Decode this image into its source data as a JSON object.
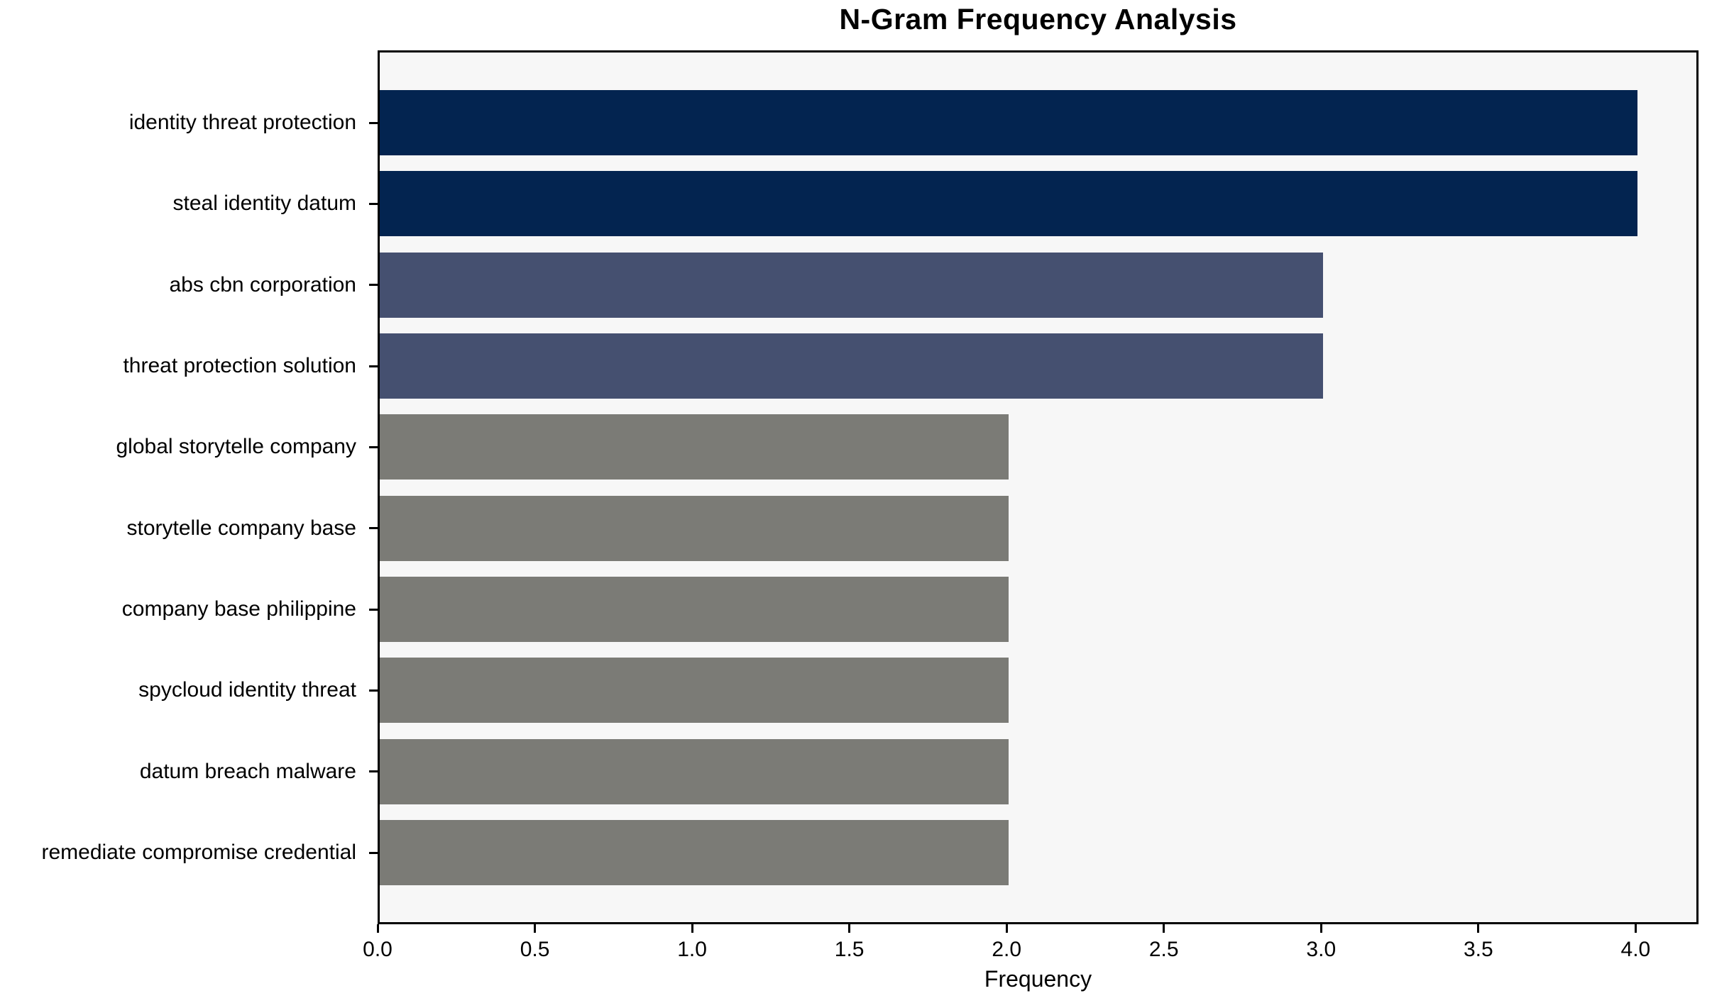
{
  "chart_data": {
    "type": "bar",
    "orientation": "horizontal",
    "title": "N-Gram Frequency Analysis",
    "xlabel": "Frequency",
    "ylabel": "",
    "categories": [
      "identity threat protection",
      "steal identity datum",
      "abs cbn corporation",
      "threat protection solution",
      "global storytelle company",
      "storytelle company base",
      "company base philippine",
      "spycloud identity threat",
      "datum breach malware",
      "remediate compromise credential"
    ],
    "values": [
      4,
      4,
      3,
      3,
      2,
      2,
      2,
      2,
      2,
      2
    ],
    "bar_colors": [
      "#032450",
      "#032450",
      "#455070",
      "#455070",
      "#7B7B76",
      "#7B7B76",
      "#7B7B76",
      "#7B7B76",
      "#7B7B76",
      "#7B7B76"
    ],
    "xlim": [
      0,
      4.2
    ],
    "xticks": [
      "0.0",
      "0.5",
      "1.0",
      "1.5",
      "2.0",
      "2.5",
      "3.0",
      "3.5",
      "4.0"
    ],
    "grid": false,
    "legend_position": "none",
    "plot_background": "#F7F7F7",
    "spine_color": "#000000"
  }
}
